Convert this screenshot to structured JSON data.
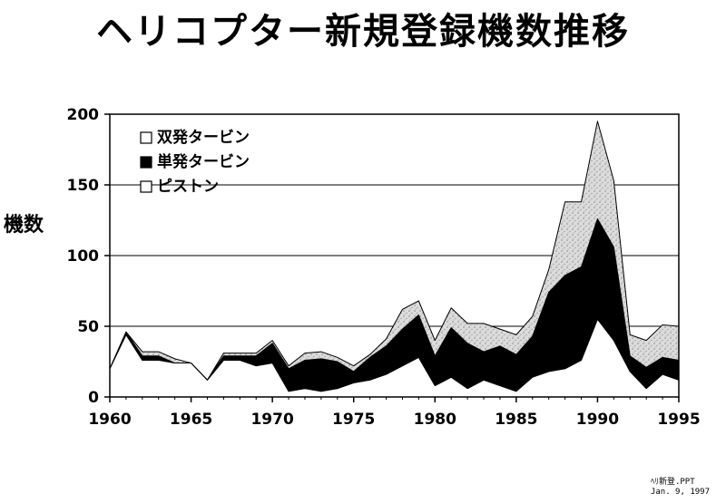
{
  "title": "ヘリコプター新規登録機数推移",
  "footer": {
    "file": "ﾍﾘ新登.PPT",
    "date": "Jan. 9, 1997"
  },
  "chart_data": {
    "type": "area",
    "title": "ヘリコプター新規登録機数推移",
    "xlabel": "",
    "ylabel": "機数",
    "xlim": [
      1960,
      1995
    ],
    "ylim": [
      0,
      200
    ],
    "x_ticks": [
      1960,
      1965,
      1970,
      1975,
      1980,
      1985,
      1990,
      1995
    ],
    "y_ticks": [
      0,
      50,
      100,
      150,
      200
    ],
    "grid": "horizontal",
    "stacked": true,
    "legend_position": "top-left",
    "legend": [
      "双発タービン",
      "単発タービン",
      "ピストン"
    ],
    "x": [
      1960,
      1961,
      1962,
      1963,
      1964,
      1965,
      1966,
      1967,
      1968,
      1969,
      1970,
      1971,
      1972,
      1973,
      1974,
      1975,
      1976,
      1977,
      1978,
      1979,
      1980,
      1981,
      1982,
      1983,
      1984,
      1985,
      1986,
      1987,
      1988,
      1989,
      1990,
      1991,
      1992,
      1993,
      1994,
      1995
    ],
    "series": [
      {
        "name": "ピストン",
        "fill": "#ffffff",
        "values": [
          20,
          44,
          26,
          26,
          24,
          24,
          12,
          26,
          26,
          22,
          24,
          4,
          6,
          4,
          6,
          10,
          12,
          16,
          22,
          28,
          8,
          14,
          6,
          12,
          8,
          4,
          14,
          18,
          20,
          26,
          55,
          40,
          18,
          6,
          16,
          12
        ]
      },
      {
        "name": "単発タービン",
        "fill": "#000000",
        "values": [
          0,
          2,
          3,
          3,
          0,
          0,
          0,
          3,
          3,
          7,
          14,
          16,
          20,
          23,
          19,
          8,
          16,
          20,
          26,
          30,
          21,
          35,
          32,
          20,
          28,
          26,
          29,
          56,
          66,
          66,
          71,
          66,
          11,
          15,
          12,
          14
        ]
      },
      {
        "name": "双発タービン",
        "fill": "#d6d6d6",
        "values": [
          0,
          0,
          3,
          3,
          3,
          0,
          0,
          2,
          2,
          2,
          2,
          2,
          5,
          5,
          3,
          4,
          2,
          5,
          14,
          10,
          11,
          14,
          14,
          20,
          12,
          14,
          14,
          16,
          52,
          46,
          69,
          47,
          15,
          19,
          23,
          24
        ]
      }
    ]
  }
}
